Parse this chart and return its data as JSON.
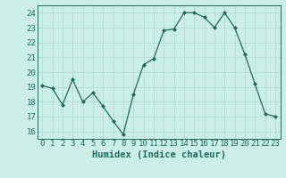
{
  "x": [
    0,
    1,
    2,
    3,
    4,
    5,
    6,
    7,
    8,
    9,
    10,
    11,
    12,
    13,
    14,
    15,
    16,
    17,
    18,
    19,
    20,
    21,
    22,
    23
  ],
  "y": [
    19.1,
    18.9,
    17.8,
    19.5,
    18.0,
    18.6,
    17.7,
    16.7,
    15.8,
    18.5,
    20.5,
    20.9,
    22.8,
    22.9,
    24.0,
    24.0,
    23.7,
    23.0,
    24.0,
    23.0,
    21.2,
    19.2,
    17.2,
    17.0
  ],
  "line_color": "#1a6b5e",
  "marker": "D",
  "marker_size": 2,
  "bg_color": "#cceee8",
  "grid_color": "#b0d8d0",
  "xlabel": "Humidex (Indice chaleur)",
  "xlabel_color": "#1a6b5e",
  "ylim": [
    15.5,
    24.5
  ],
  "xlim": [
    -0.5,
    23.5
  ],
  "yticks": [
    16,
    17,
    18,
    19,
    20,
    21,
    22,
    23,
    24
  ],
  "xticks": [
    0,
    1,
    2,
    3,
    4,
    5,
    6,
    7,
    8,
    9,
    10,
    11,
    12,
    13,
    14,
    15,
    16,
    17,
    18,
    19,
    20,
    21,
    22,
    23
  ],
  "tick_fontsize": 6.5,
  "xlabel_fontsize": 7.5
}
